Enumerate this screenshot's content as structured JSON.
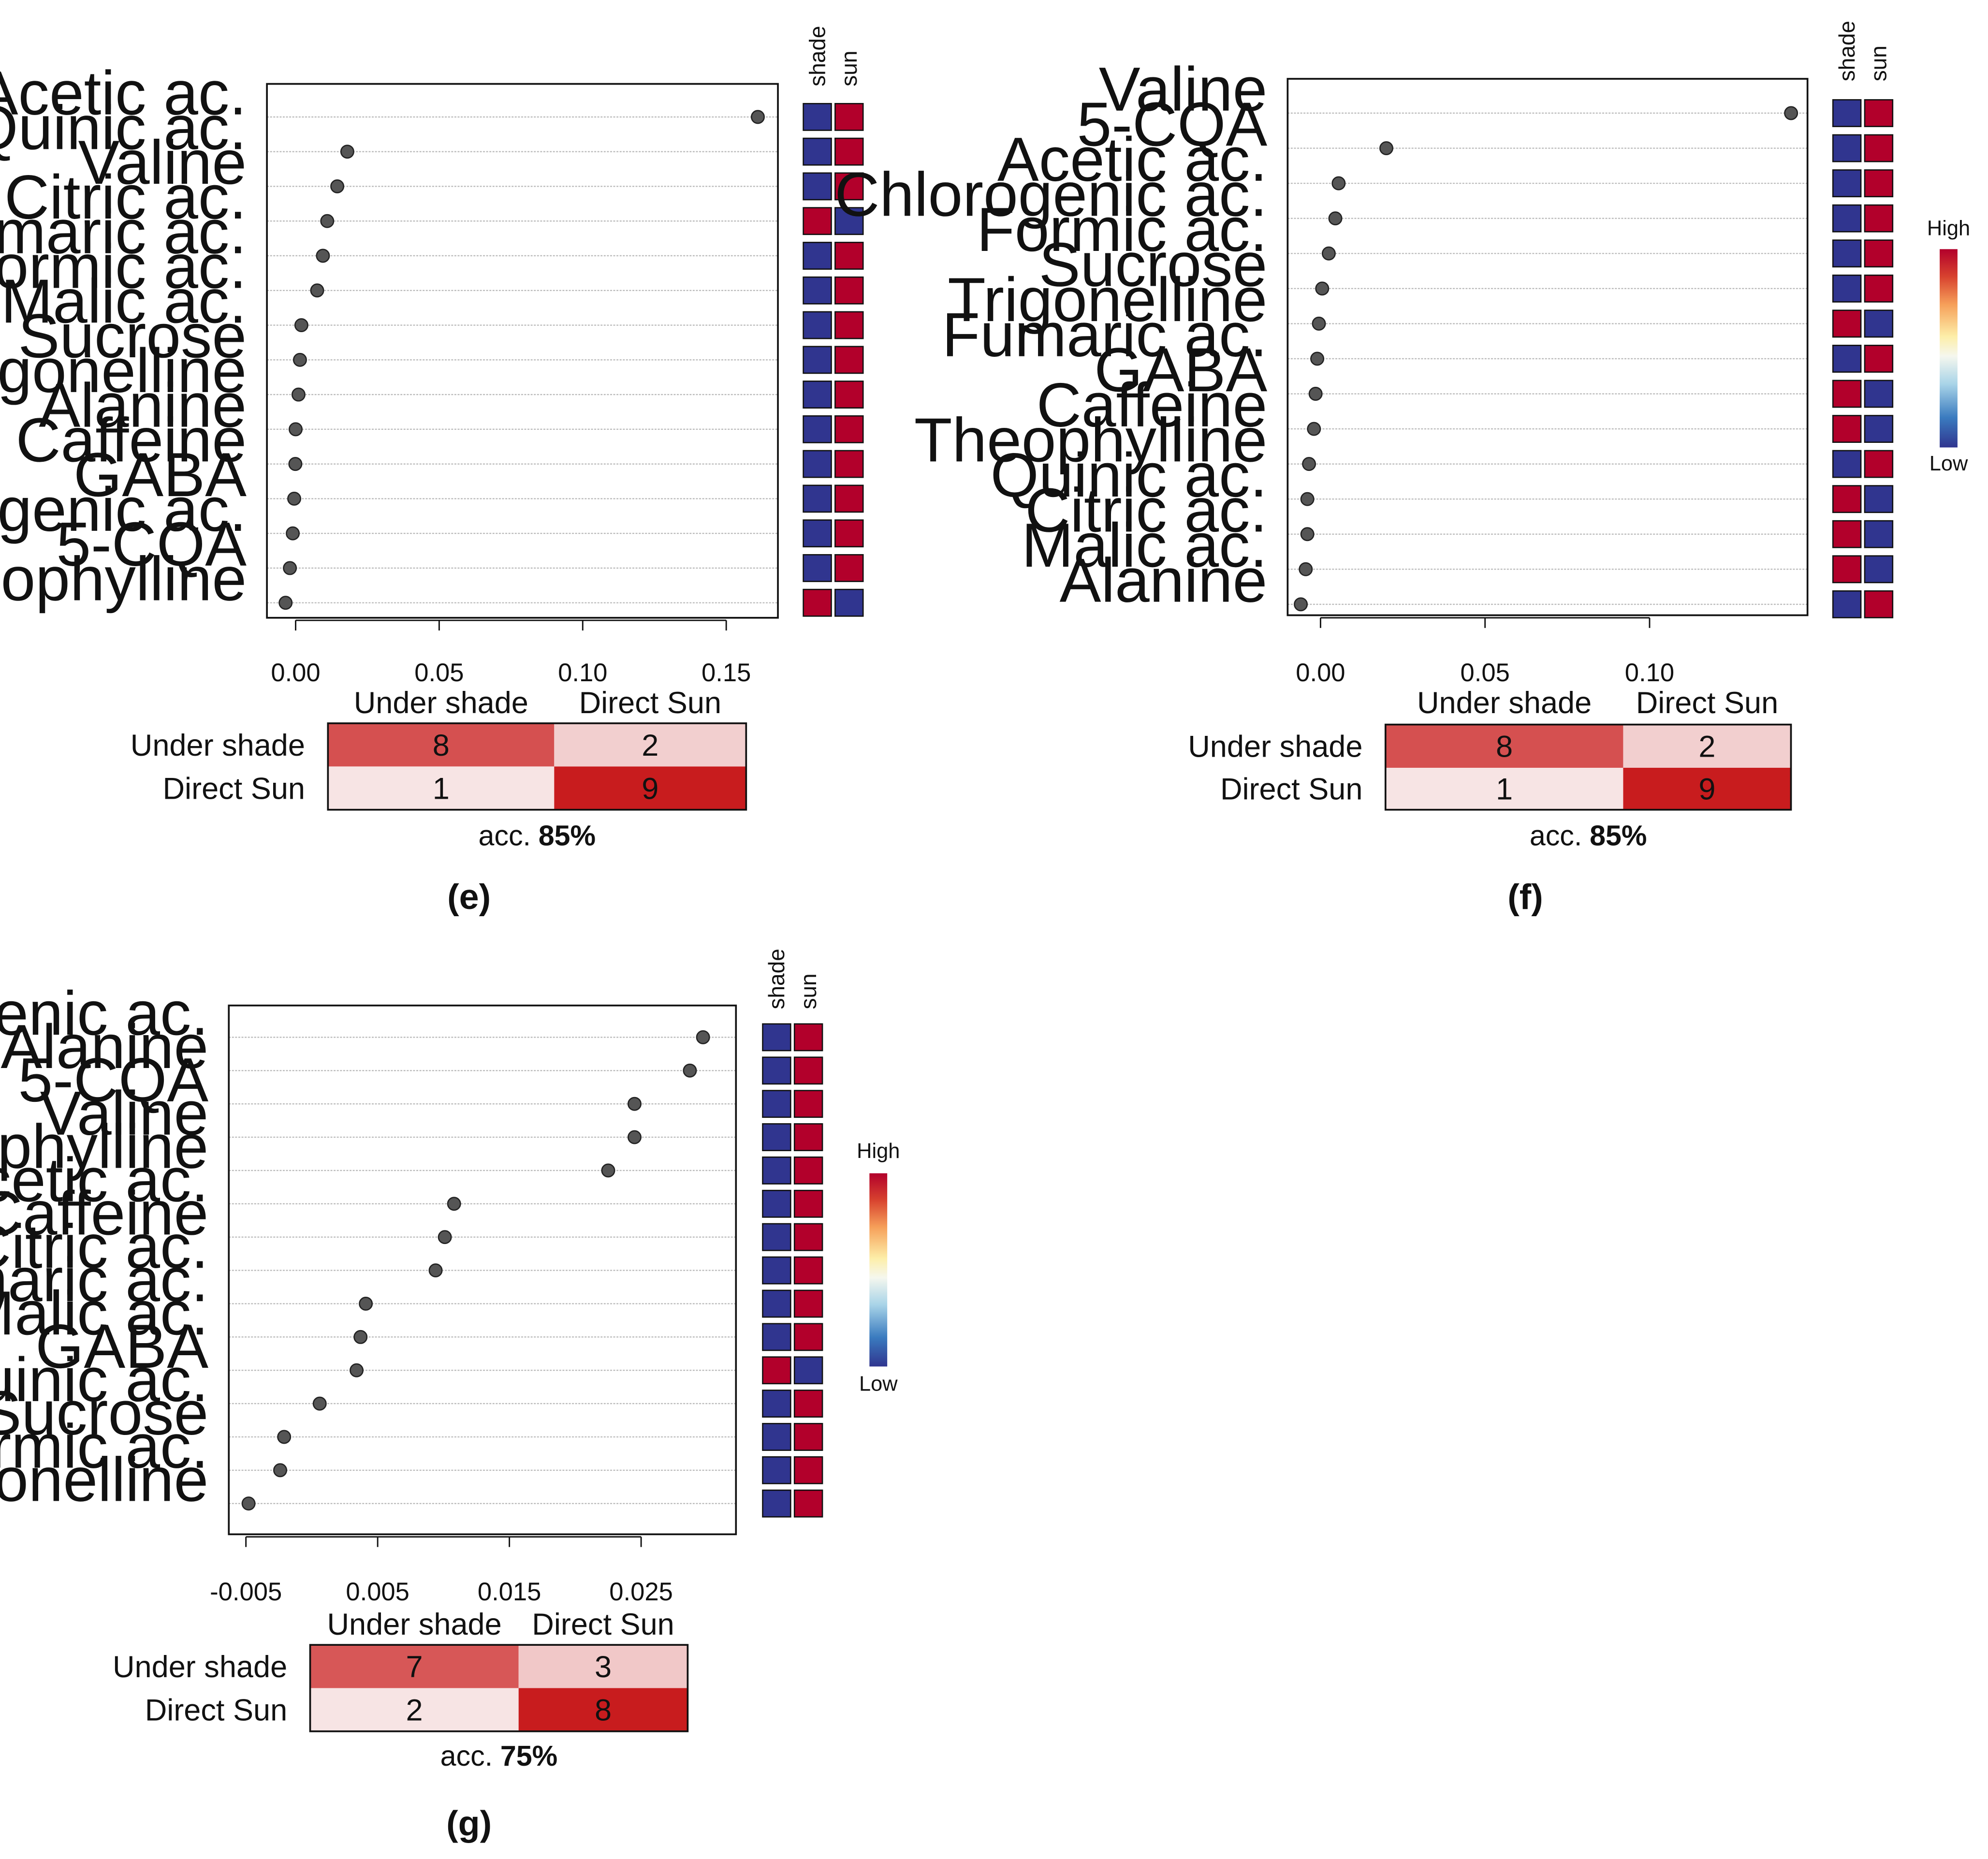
{
  "colors": {
    "heat_high": "#b2002b",
    "heat_low": "#30358f",
    "point": "#555555",
    "gridline": "#bbbbbb",
    "cm_scale": [
      "#f7e4e4",
      "#d03b3b"
    ]
  },
  "chart_data": [
    {
      "panel": "(e)",
      "type": "scatter",
      "variables": [
        "Acetic ac.",
        "Quinic ac.",
        "Valine",
        "Citric ac.",
        "Fumaric ac.",
        "Formic ac.",
        "Malic ac.",
        "Sucrose",
        "Trigonelline",
        "Alanine",
        "Caffeine",
        "GABA",
        "Chlorogenic ac.",
        "5-CQA",
        "Theophylline"
      ],
      "values": [
        0.161,
        0.018,
        0.0145,
        0.011,
        0.0095,
        0.0075,
        0.002,
        0.0015,
        0.001,
        0.0,
        -0.0001,
        -0.0005,
        -0.001,
        -0.002,
        -0.0035
      ],
      "xticks": [
        0.0,
        0.05,
        0.1,
        0.15
      ],
      "xtick_labels": [
        "0.00",
        "0.05",
        "0.10",
        "0.15"
      ],
      "xlim": [
        -0.01,
        0.168
      ],
      "heatmap_columns": [
        "shade",
        "sun"
      ],
      "heatmap": [
        [
          "low",
          "high"
        ],
        [
          "low",
          "high"
        ],
        [
          "low",
          "high"
        ],
        [
          "high",
          "low"
        ],
        [
          "low",
          "high"
        ],
        [
          "low",
          "high"
        ],
        [
          "low",
          "high"
        ],
        [
          "low",
          "high"
        ],
        [
          "low",
          "high"
        ],
        [
          "low",
          "high"
        ],
        [
          "low",
          "high"
        ],
        [
          "low",
          "high"
        ],
        [
          "low",
          "high"
        ],
        [
          "low",
          "high"
        ],
        [
          "high",
          "low"
        ]
      ],
      "confusion_matrix": {
        "col_labels": [
          "Under shade",
          "Direct Sun"
        ],
        "row_labels": [
          "Under shade",
          "Direct Sun"
        ],
        "values": [
          [
            8,
            2
          ],
          [
            1,
            9
          ]
        ],
        "acc_prefix": "acc.",
        "acc_value": "85%"
      }
    },
    {
      "panel": "(f)",
      "type": "scatter",
      "variables": [
        "Valine",
        "5-CQA",
        "Acetic ac.",
        "Chlorogenic ac.",
        "Formic ac.",
        "Sucrose",
        "Trigonelline",
        "Fumaric ac.",
        "GABA",
        "Caffeine",
        "Theophylline",
        "Quinic ac.",
        "Citric ac.",
        "Malic ac.",
        "Alanine"
      ],
      "values": [
        0.143,
        0.02,
        0.0055,
        0.0045,
        0.0025,
        0.0005,
        -0.0005,
        -0.001,
        -0.0015,
        -0.002,
        -0.0035,
        -0.004,
        -0.004,
        -0.0045,
        -0.006
      ],
      "xticks": [
        0.0,
        0.05,
        0.1
      ],
      "xtick_labels": [
        "0.00",
        "0.05",
        "0.10"
      ],
      "xlim": [
        -0.01,
        0.148
      ],
      "heatmap_columns": [
        "shade",
        "sun"
      ],
      "heatmap": [
        [
          "low",
          "high"
        ],
        [
          "low",
          "high"
        ],
        [
          "low",
          "high"
        ],
        [
          "low",
          "high"
        ],
        [
          "low",
          "high"
        ],
        [
          "low",
          "high"
        ],
        [
          "high",
          "low"
        ],
        [
          "low",
          "high"
        ],
        [
          "high",
          "low"
        ],
        [
          "high",
          "low"
        ],
        [
          "low",
          "high"
        ],
        [
          "high",
          "low"
        ],
        [
          "high",
          "low"
        ],
        [
          "high",
          "low"
        ],
        [
          "low",
          "high"
        ]
      ],
      "legend_high": "High",
      "legend_low": "Low",
      "confusion_matrix": {
        "col_labels": [
          "Under shade",
          "Direct Sun"
        ],
        "row_labels": [
          "Under shade",
          "Direct Sun"
        ],
        "values": [
          [
            8,
            2
          ],
          [
            1,
            9
          ]
        ],
        "acc_prefix": "acc.",
        "acc_value": "85%"
      }
    },
    {
      "panel": "(g)",
      "type": "scatter",
      "variables": [
        "Chlorogenic ac.",
        "Alanine",
        "5-CQA",
        "Valine",
        "Theophylline",
        "Acetic ac.",
        "Caffeine",
        "Citric ac.",
        "Fumaric ac.",
        "Malic ac.",
        "GABA",
        "Quinic ac.",
        "Sucrose",
        "Formic ac.",
        "Trigonelline"
      ],
      "values": [
        0.0297,
        0.0287,
        0.0245,
        0.0245,
        0.0225,
        0.0108,
        0.0101,
        0.0094,
        0.0041,
        0.0037,
        0.0034,
        0.0006,
        -0.0021,
        -0.0024,
        -0.0048
      ],
      "xticks": [
        -0.005,
        0.005,
        0.015,
        0.025
      ],
      "xtick_labels": [
        "-0.005",
        "0.005",
        "0.015",
        "0.025"
      ],
      "xlim": [
        -0.0063,
        0.0322
      ],
      "heatmap_columns": [
        "shade",
        "sun"
      ],
      "heatmap": [
        [
          "low",
          "high"
        ],
        [
          "low",
          "high"
        ],
        [
          "low",
          "high"
        ],
        [
          "low",
          "high"
        ],
        [
          "low",
          "high"
        ],
        [
          "low",
          "high"
        ],
        [
          "low",
          "high"
        ],
        [
          "low",
          "high"
        ],
        [
          "low",
          "high"
        ],
        [
          "low",
          "high"
        ],
        [
          "high",
          "low"
        ],
        [
          "low",
          "high"
        ],
        [
          "low",
          "high"
        ],
        [
          "low",
          "high"
        ],
        [
          "low",
          "high"
        ]
      ],
      "legend_high": "High",
      "legend_low": "Low",
      "confusion_matrix": {
        "col_labels": [
          "Under shade",
          "Direct Sun"
        ],
        "row_labels": [
          "Under shade",
          "Direct Sun"
        ],
        "values": [
          [
            7,
            3
          ],
          [
            2,
            8
          ]
        ],
        "acc_prefix": "acc.",
        "acc_value": "75%"
      }
    }
  ]
}
